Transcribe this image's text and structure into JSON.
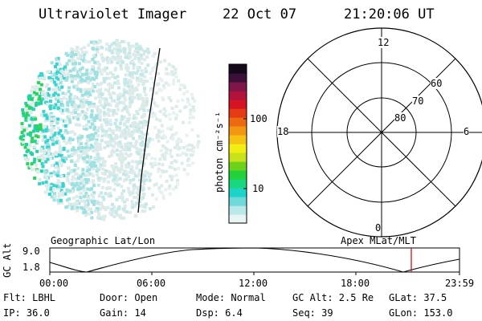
{
  "header": {
    "instrument": "Ultraviolet Imager",
    "date": "22 Oct 07",
    "time": "21:20:06 UT"
  },
  "colorbar": {
    "unit_label": "photon cm⁻²s⁻¹",
    "ticks": [
      "100",
      "10"
    ],
    "colors": [
      "#e8f4f4",
      "#b8e8e8",
      "#6fd8d8",
      "#1fd3c8",
      "#19d77f",
      "#23d23a",
      "#6ed21c",
      "#c8e11b",
      "#f2ee13",
      "#f5c313",
      "#f39712",
      "#ee6a12",
      "#e33b15",
      "#d61322",
      "#b0133c",
      "#7e1649",
      "#3b0f3a",
      "#150819"
    ]
  },
  "polar_grid": {
    "mlt_labels": {
      "top": "12",
      "bottom": "0",
      "left": "18",
      "right": "6"
    },
    "lat_labels": [
      "60",
      "70",
      "80"
    ]
  },
  "timeline": {
    "ylabel": "GC Alt",
    "ytick_top": "9.0",
    "ytick_bottom": "1.8",
    "left_caption": "Geographic Lat/Lon",
    "right_caption": "Apex MLat/MLT",
    "xticks": [
      "00:00",
      "06:00",
      "12:00",
      "18:00",
      "23:59"
    ],
    "marker_color": "#d00000"
  },
  "info": {
    "flt": "Flt: LBHL",
    "ip": "IP: 36.0",
    "door": "Door: Open",
    "gain": "Gain: 14",
    "mode": "Mode: Normal",
    "dsp": "Dsp:     6.4",
    "gcalt": "GC Alt: 2.5 Re",
    "seq": "Seq: 39",
    "glat": "GLat:  37.5",
    "glon": "GLon: 153.0"
  }
}
